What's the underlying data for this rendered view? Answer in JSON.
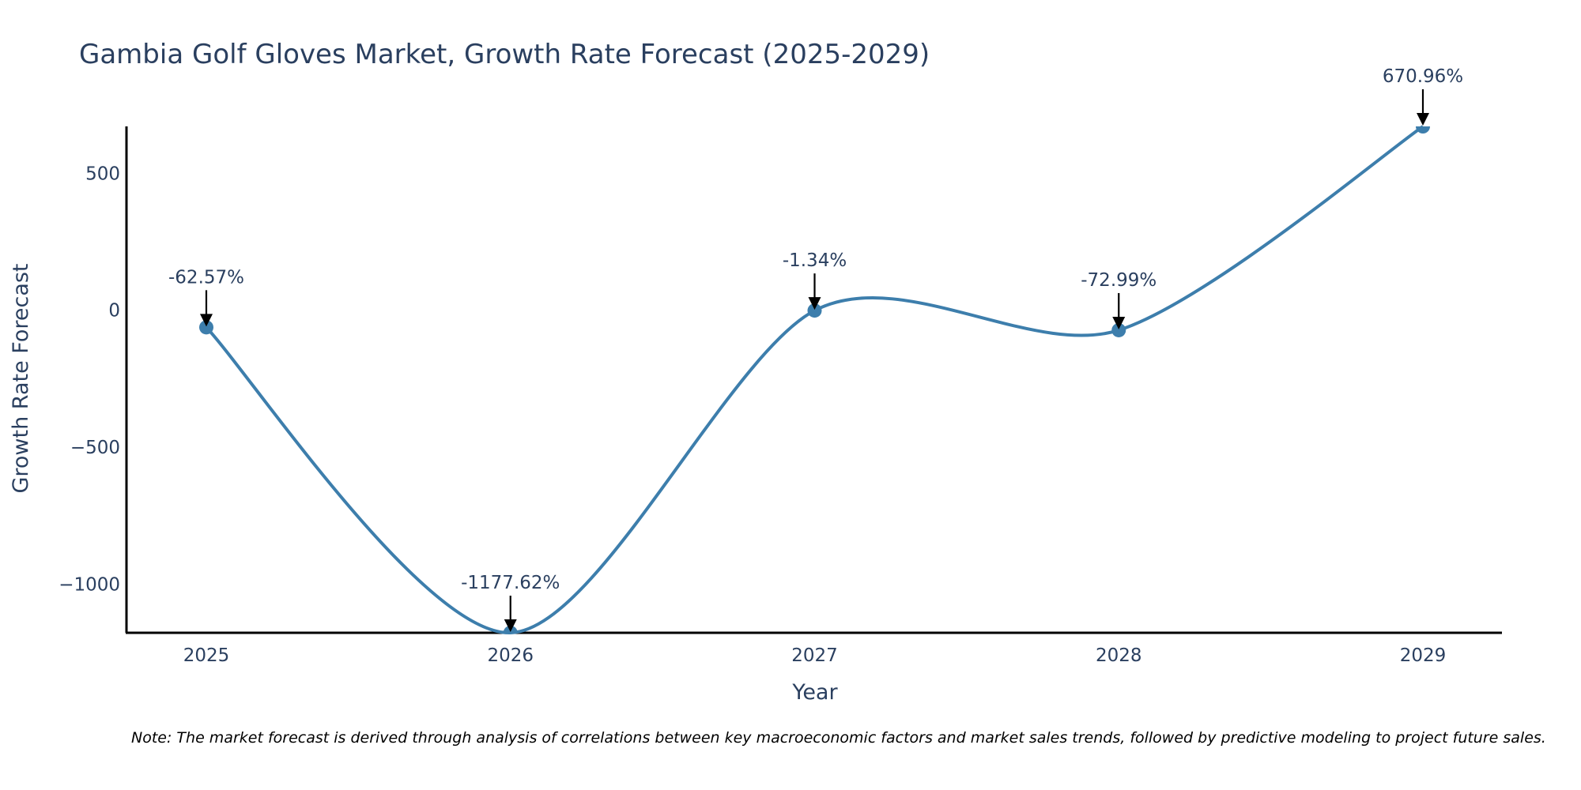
{
  "colors": {
    "line": "#3d7eac",
    "marker": "#3d7eac",
    "text": "#2a3f5f",
    "axis": "#000000",
    "arrow": "#000000"
  },
  "chart_data": {
    "type": "line",
    "title": "Gambia Golf Gloves Market, Growth Rate Forecast (2025-2029)",
    "xlabel": "Year",
    "ylabel": "Growth Rate Forecast",
    "categories": [
      "2025",
      "2026",
      "2027",
      "2028",
      "2029"
    ],
    "values": [
      -62.57,
      -1177.62,
      -1.34,
      -72.99,
      670.96
    ],
    "data_labels": [
      "-62.57%",
      "-1177.62%",
      "-1.34%",
      "-72.99%",
      "670.96%"
    ],
    "y_ticks": [
      500,
      0,
      -500,
      -1000
    ],
    "y_tick_labels": [
      "500",
      "0",
      "−500",
      "−1000"
    ],
    "ylim": [
      -1177.62,
      670.96
    ],
    "grid": false,
    "line_shape": "spline"
  },
  "note": "Note: The market forecast is derived through analysis of correlations between key macroeconomic factors and market sales trends, followed by predictive modeling to project future sales."
}
